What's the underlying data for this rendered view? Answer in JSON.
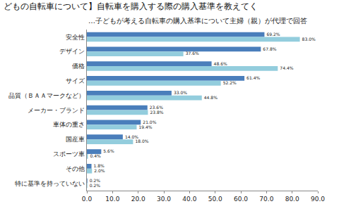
{
  "chart_data": {
    "type": "bar",
    "orientation": "horizontal",
    "title": "どもの自転車について】自転車を購入する際の購入基準を教えてく",
    "subtitle": "…子どもが考える自転車の購入基準について主婦（親）が代理で回答",
    "categories": [
      "安全性",
      "デザイン",
      "価格",
      "サイズ",
      "品質（ＢＡＡマークなど）",
      "メーカー・ブランド",
      "車体の重さ",
      "国産車",
      "スポーツ車",
      "その他",
      "特に基準を持っていない"
    ],
    "series": [
      {
        "color": "#4a7ebb",
        "values": [
          69.2,
          67.8,
          48.6,
          61.4,
          33.0,
          23.6,
          21.0,
          14.0,
          5.6,
          1.8,
          0.2
        ],
        "value_labels": [
          "69.2%",
          "67.8%",
          "48.6%",
          "61.4%",
          "33.0%",
          "23.6%",
          "21.0%",
          "14.0%",
          "5.6%",
          "1.8%",
          "0.2%"
        ]
      },
      {
        "color": "#93cddd",
        "values": [
          83.0,
          37.6,
          74.4,
          52.2,
          44.8,
          23.8,
          19.4,
          18.0,
          0.4,
          2.0,
          0.2
        ],
        "value_labels": [
          "83.0%",
          "37.6%",
          "74.4%",
          "52.2%",
          "44.8%",
          "23.8%",
          "19.4%",
          "18.0%",
          "0.4%",
          "2.0%",
          "0.2%"
        ]
      }
    ],
    "xlim": [
      0,
      90
    ],
    "xticks": [
      {
        "value": 0,
        "label": "0.0"
      },
      {
        "value": 10,
        "label": "10.0"
      },
      {
        "value": 20,
        "label": "20.0"
      },
      {
        "value": 30,
        "label": "30.0"
      },
      {
        "value": 40,
        "label": "40.0"
      },
      {
        "value": 50,
        "label": "50.0"
      },
      {
        "value": 60,
        "label": "60.0"
      },
      {
        "value": 70,
        "label": "70.0"
      },
      {
        "value": 80,
        "label": "80.0"
      },
      {
        "value": 90,
        "label": "90.0"
      }
    ],
    "grid": false,
    "data_labels": true
  }
}
